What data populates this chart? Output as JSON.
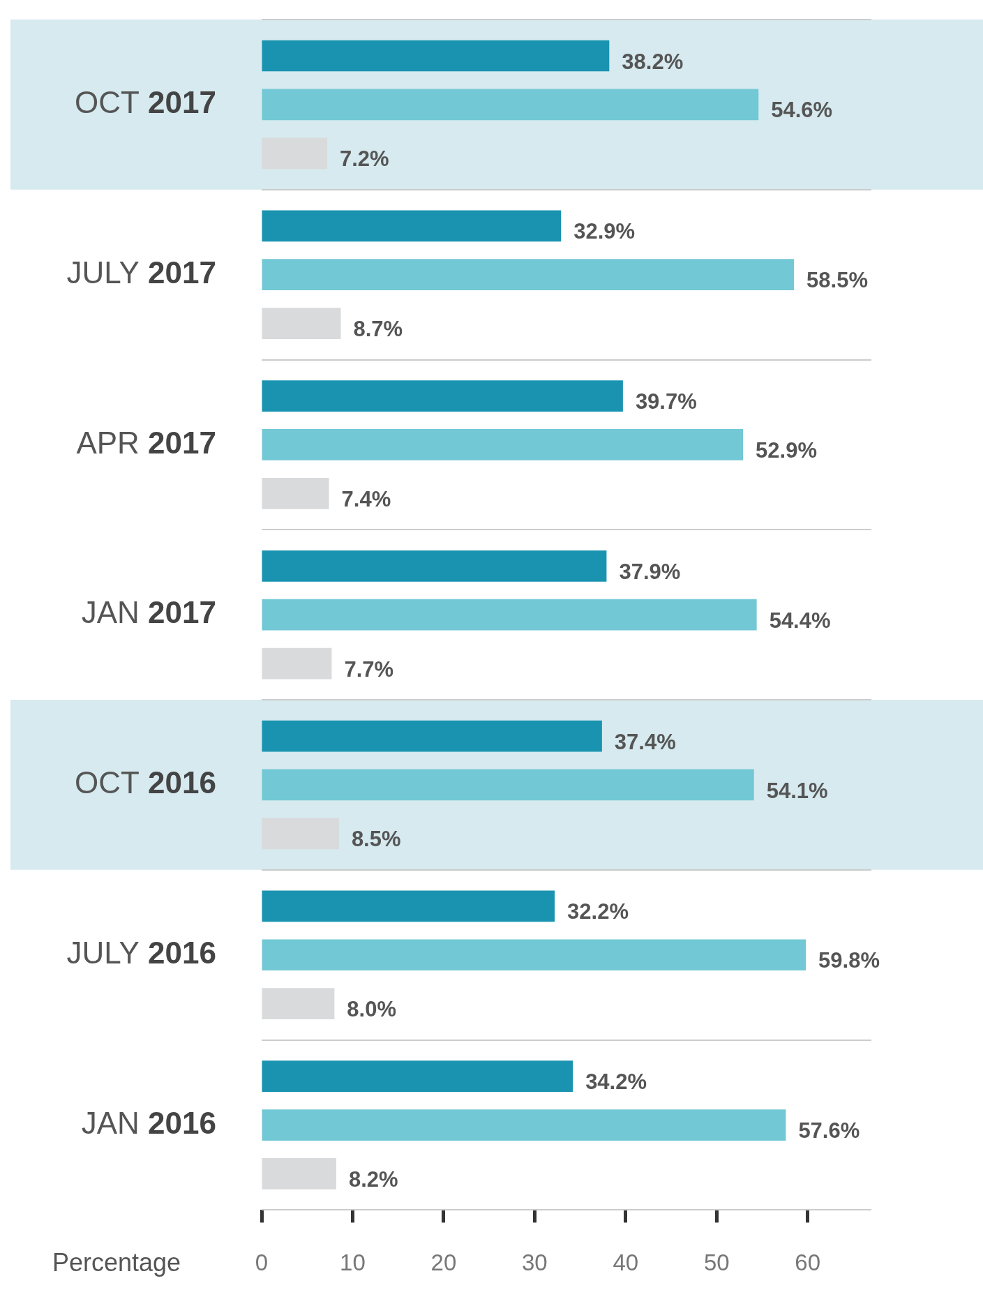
{
  "chart_data": {
    "type": "bar",
    "orientation": "horizontal",
    "xlabel": "Percentage",
    "categories": [
      "OCT 2017",
      "JULY 2017",
      "APR 2017",
      "JAN 2017",
      "OCT 2016",
      "JULY 2016",
      "JAN 2016"
    ],
    "series": [
      {
        "color": "#1993b0",
        "values": [
          38.2,
          32.9,
          39.7,
          37.9,
          37.4,
          32.2,
          34.2
        ],
        "value_labels": [
          "38.2%",
          "32.9%",
          "39.7%",
          "37.9%",
          "37.4%",
          "32.2%",
          "34.2%"
        ]
      },
      {
        "color": "#72c8d5",
        "values": [
          54.6,
          58.5,
          52.9,
          54.4,
          54.1,
          59.8,
          57.6
        ],
        "value_labels": [
          "54.6%",
          "58.5%",
          "52.9%",
          "54.4%",
          "54.1%",
          "59.8%",
          "57.6%"
        ]
      },
      {
        "color": "#d8dadb",
        "values": [
          7.2,
          8.7,
          7.4,
          7.7,
          8.5,
          8.0,
          8.2
        ],
        "value_labels": [
          "7.2%",
          "8.7%",
          "7.4%",
          "7.7%",
          "8.5%",
          "8.0%",
          "8.2%"
        ]
      }
    ],
    "xlim": [
      0,
      67
    ],
    "xticks": [
      0,
      10,
      20,
      30,
      40,
      50,
      60
    ],
    "grid": "y",
    "legend": false,
    "bands": [
      {
        "axis": "y",
        "from": "OCT 2017",
        "to": "OCT 2017",
        "color": "#d6eaef"
      },
      {
        "axis": "y",
        "from": "OCT 2016",
        "to": "OCT 2016",
        "color": "#d6eaef"
      }
    ]
  }
}
